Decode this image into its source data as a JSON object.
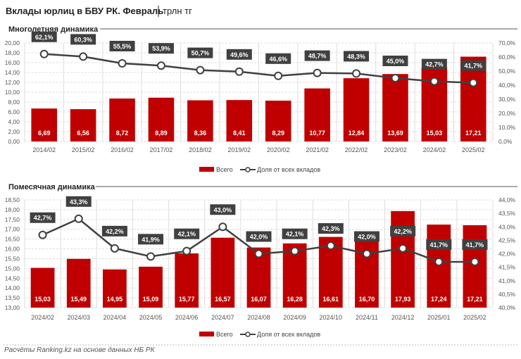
{
  "title": "Вклады юрлиц в БВУ РК. Февраль",
  "unit": "трлн тг",
  "footer": "Расчёты Ranking.kz на основе данных НБ РК",
  "colors": {
    "bar": "#c00000",
    "line": "#404040",
    "label_bg": "#404040"
  },
  "chart_data": [
    {
      "type": "bar+line",
      "title": "Многолетняя динамика",
      "categories": [
        "2014/02",
        "2015/02",
        "2016/02",
        "2017/02",
        "2018/02",
        "2019/02",
        "2020/02",
        "2021/02",
        "2022/02",
        "2023/02",
        "2024/02",
        "2025/02"
      ],
      "series": [
        {
          "name": "Всего",
          "type": "bar",
          "axis": "left",
          "values": [
            6.69,
            6.56,
            8.72,
            8.89,
            8.36,
            8.41,
            8.29,
            10.77,
            12.84,
            13.69,
            15.03,
            17.21
          ],
          "labels": [
            "6,69",
            "6,56",
            "8,72",
            "8,89",
            "8,36",
            "8,41",
            "8,29",
            "10,77",
            "12,84",
            "13,69",
            "15,03",
            "17,21"
          ]
        },
        {
          "name": "Доля от всех вкладов",
          "type": "line",
          "axis": "right",
          "values": [
            62.1,
            60.3,
            55.5,
            53.9,
            50.7,
            49.6,
            46.6,
            48.7,
            48.3,
            45.0,
            42.7,
            41.7
          ],
          "labels": [
            "62,1%",
            "60,3%",
            "55,5%",
            "53,9%",
            "50,7%",
            "49,6%",
            "46,6%",
            "48,7%",
            "48,3%",
            "45,0%",
            "42,7%",
            "41,7%"
          ]
        }
      ],
      "ylim": [
        0,
        20
      ],
      "ystep": 2,
      "yticks": [
        "0,00",
        "2,00",
        "4,00",
        "6,00",
        "8,00",
        "10,00",
        "12,00",
        "14,00",
        "16,00",
        "18,00",
        "20,00"
      ],
      "y2lim": [
        0,
        70
      ],
      "y2step": 10,
      "y2ticks": [
        "0,0%",
        "10,0%",
        "20,0%",
        "30,0%",
        "40,0%",
        "50,0%",
        "60,0%",
        "70,0%"
      ],
      "legend": "bottom",
      "grid": true
    },
    {
      "type": "bar+line",
      "title": "Помесячная динамика",
      "categories": [
        "2024/02",
        "2024/03",
        "2024/04",
        "2024/05",
        "2024/06",
        "2024/07",
        "2024/08",
        "2024/09",
        "2024/10",
        "2024/11",
        "2024/12",
        "2025/01",
        "2025/02"
      ],
      "series": [
        {
          "name": "Всего",
          "type": "bar",
          "axis": "left",
          "values": [
            15.03,
            15.49,
            14.95,
            15.09,
            15.77,
            16.57,
            16.07,
            16.28,
            16.61,
            16.7,
            17.93,
            17.24,
            17.21
          ],
          "labels": [
            "15,03",
            "15,49",
            "14,95",
            "15,09",
            "15,77",
            "16,57",
            "16,07",
            "16,28",
            "16,61",
            "16,70",
            "17,93",
            "17,24",
            "17,21"
          ]
        },
        {
          "name": "Доля от всех вкладов",
          "type": "line",
          "axis": "right",
          "values": [
            42.7,
            43.3,
            42.2,
            41.9,
            42.1,
            43.0,
            42.0,
            42.1,
            42.3,
            42.0,
            42.2,
            41.7,
            41.7
          ],
          "labels": [
            "42,7%",
            "43,3%",
            "42,2%",
            "41,9%",
            "42,1%",
            "43,0%",
            "42,0%",
            "42,1%",
            "42,3%",
            "42,0%",
            "42,2%",
            "41,7%",
            "41,7%"
          ]
        }
      ],
      "ylim": [
        13,
        18.5
      ],
      "ystep": 0.5,
      "yticks": [
        "13,00",
        "13,50",
        "14,00",
        "14,50",
        "15,00",
        "15,50",
        "16,00",
        "16,50",
        "17,00",
        "17,50",
        "18,00",
        "18,50"
      ],
      "y2lim": [
        40,
        44
      ],
      "y2step": 0.5,
      "y2ticks": [
        "40,0%",
        "40,5%",
        "41,0%",
        "41,5%",
        "42,0%",
        "42,5%",
        "43,0%",
        "43,5%",
        "44,0%"
      ],
      "legend": "bottom",
      "grid": true
    }
  ]
}
